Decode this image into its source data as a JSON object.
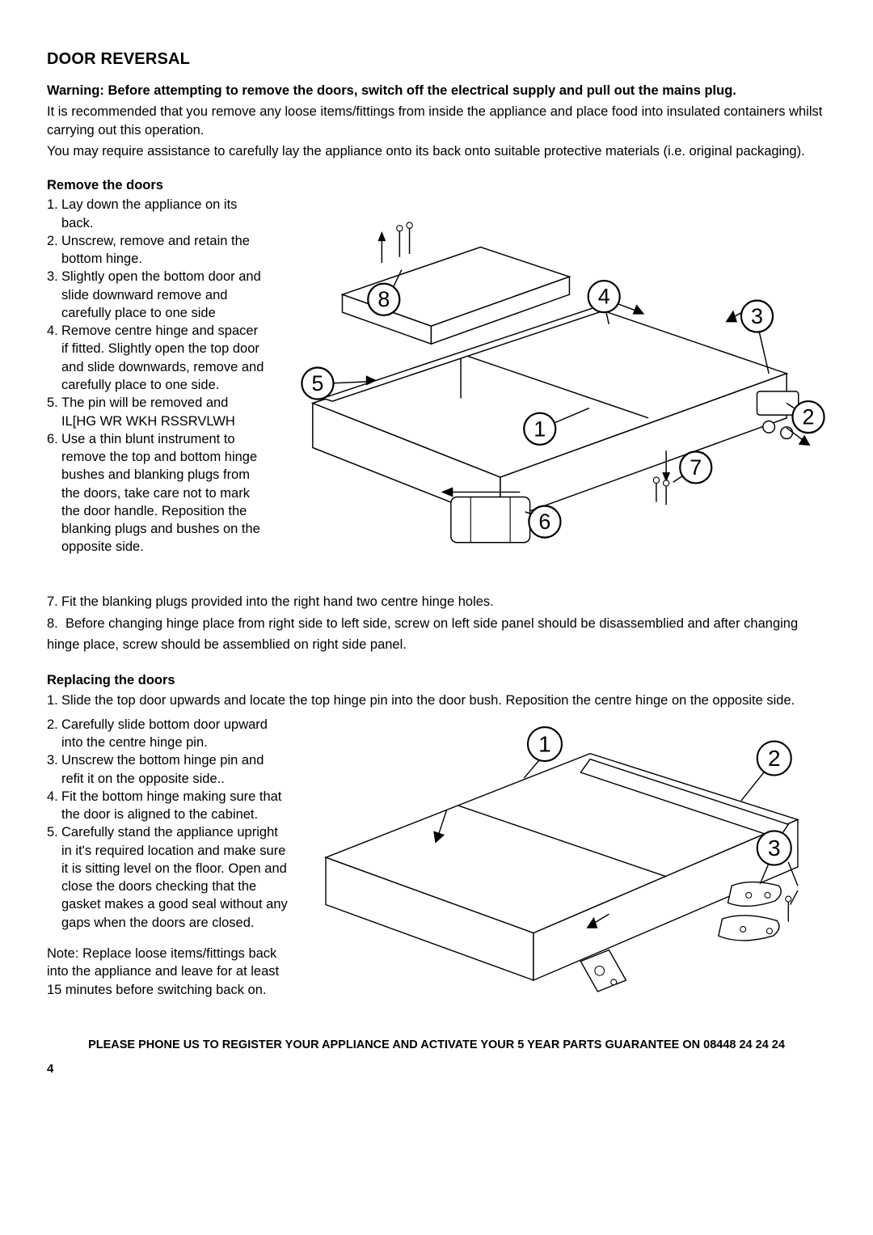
{
  "title": "DOOR REVERSAL",
  "warning": "Warning: Before attempting to remove the doors, switch off the electrical supply and pull out the mains plug.",
  "intro1": "It is recommended that you remove any loose items/fittings from inside the appliance and place food into insulated containers whilst carrying out this operation.",
  "intro2": "You may require assistance to carefully lay the appliance onto its back onto suitable protective materials (i.e. original packaging).",
  "remove_heading": "Remove the doors",
  "remove_steps": [
    {
      "n": "1.",
      "t": "Lay down the appliance on its back."
    },
    {
      "n": "2.",
      "t": "Unscrew, remove and retain the bottom hinge."
    },
    {
      "n": "3.",
      "t": "Slightly open the bottom door and slide downward remove and carefully place to one side"
    },
    {
      "n": "4.",
      "t": "Remove centre hinge and spacer if fitted. Slightly open the top door and slide downwards, remove and carefully place to one side."
    },
    {
      "n": "5.",
      "t": "The pin will be removed  and IL[HG WR WKH RSSRVLWH"
    },
    {
      "n": "6.",
      "t": "Use a thin blunt instrument to remove the top and bottom hinge bushes and blanking plugs from the doors, take care not to mark the door handle. Reposition the blanking plugs and bushes on the opposite side."
    }
  ],
  "remove_step7": {
    "n": "7.",
    "t": "Fit the blanking plugs provided into the right hand two centre hinge holes."
  },
  "remove_step8": {
    "n": "8.",
    "t": "Before changing hinge place from right side to left side, screw on left side panel should be disassemblied and after changing hinge place, screw should be assemblied on right side panel."
  },
  "replace_heading": "Replacing the doors",
  "replace_step1": {
    "n": "1.",
    "t": "Slide the top door upwards and locate the top hinge pin into the door bush. Reposition the centre hinge on the opposite side."
  },
  "replace_steps_narrow": [
    {
      "n": "2.",
      "t": "Carefully slide bottom door upward into the centre hinge pin."
    },
    {
      "n": "3.",
      "t": "Unscrew the bottom hinge pin and refit it on the opposite side.."
    },
    {
      "n": "4.",
      "t": "Fit the bottom hinge making sure that the door is aligned to the cabinet."
    },
    {
      "n": "5.",
      "t": "Carefully stand the appliance upright in it's required location and make sure it is sitting level on the floor. Open and close the doors checking that the gasket makes a good seal without any gaps when the doors are closed."
    }
  ],
  "note": "Note: Replace loose items/fittings back into the appliance and leave for at least 15 minutes before switching back on.",
  "footer": "PLEASE PHONE US TO REGISTER YOUR APPLIANCE AND ACTIVATE YOUR 5 YEAR PARTS GUARANTEE ON 08448 24 24 24",
  "page_number": "4",
  "figure1_callouts": [
    "1",
    "2",
    "3",
    "4",
    "5",
    "6",
    "7",
    "8"
  ],
  "figure2_callouts": [
    "1",
    "2",
    "3"
  ]
}
